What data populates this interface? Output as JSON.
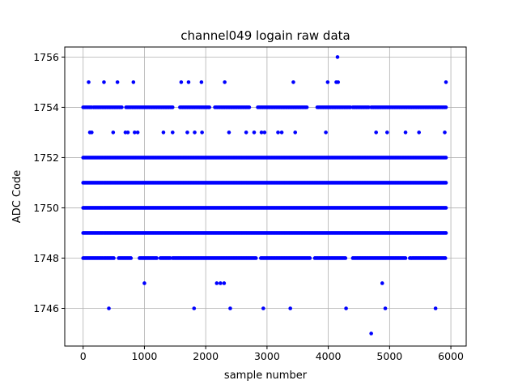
{
  "chart_data": {
    "type": "scatter",
    "title": "channel049 logain raw data",
    "xlabel": "sample number",
    "ylabel": "ADC Code",
    "xlim": [
      -300,
      6250
    ],
    "ylim": [
      1744.5,
      1756.4
    ],
    "xticks": [
      0,
      1000,
      2000,
      3000,
      4000,
      5000,
      6000
    ],
    "yticks": [
      1746,
      1748,
      1750,
      1752,
      1754,
      1756
    ],
    "grid": true,
    "marker_color": "#0000ff",
    "band_range": [
      0,
      5920
    ],
    "band_step": 20,
    "dense_levels": [
      1749,
      1750,
      1751,
      1752
    ],
    "medium_levels": [
      {
        "value": 1754,
        "segments": [
          [
            0,
            150
          ],
          [
            170,
            640
          ],
          [
            700,
            1460
          ],
          [
            1580,
            2070
          ],
          [
            2150,
            2720
          ],
          [
            2850,
            3650
          ],
          [
            3820,
            4360
          ],
          [
            4400,
            4660
          ],
          [
            4700,
            5920
          ]
        ]
      },
      {
        "value": 1748,
        "segments": [
          [
            0,
            500
          ],
          [
            580,
            780
          ],
          [
            920,
            1200
          ],
          [
            1260,
            1420
          ],
          [
            1460,
            2830
          ],
          [
            2900,
            3700
          ],
          [
            3780,
            4280
          ],
          [
            4400,
            5270
          ],
          [
            5330,
            5920
          ]
        ]
      }
    ],
    "sparse_points": [
      {
        "x": 90,
        "y": 1755
      },
      {
        "x": 340,
        "y": 1755
      },
      {
        "x": 560,
        "y": 1755
      },
      {
        "x": 820,
        "y": 1755
      },
      {
        "x": 1600,
        "y": 1755
      },
      {
        "x": 1720,
        "y": 1755
      },
      {
        "x": 1930,
        "y": 1755
      },
      {
        "x": 2310,
        "y": 1755
      },
      {
        "x": 3430,
        "y": 1755
      },
      {
        "x": 3990,
        "y": 1755
      },
      {
        "x": 4130,
        "y": 1755
      },
      {
        "x": 4160,
        "y": 1755
      },
      {
        "x": 5920,
        "y": 1755
      },
      {
        "x": 4150,
        "y": 1756
      },
      {
        "x": 110,
        "y": 1753
      },
      {
        "x": 140,
        "y": 1753
      },
      {
        "x": 490,
        "y": 1753
      },
      {
        "x": 690,
        "y": 1753
      },
      {
        "x": 730,
        "y": 1753
      },
      {
        "x": 840,
        "y": 1753
      },
      {
        "x": 890,
        "y": 1753
      },
      {
        "x": 1310,
        "y": 1753
      },
      {
        "x": 1460,
        "y": 1753
      },
      {
        "x": 1700,
        "y": 1753
      },
      {
        "x": 1820,
        "y": 1753
      },
      {
        "x": 1940,
        "y": 1753
      },
      {
        "x": 2380,
        "y": 1753
      },
      {
        "x": 2660,
        "y": 1753
      },
      {
        "x": 2790,
        "y": 1753
      },
      {
        "x": 2910,
        "y": 1753
      },
      {
        "x": 2960,
        "y": 1753
      },
      {
        "x": 3180,
        "y": 1753
      },
      {
        "x": 3240,
        "y": 1753
      },
      {
        "x": 3460,
        "y": 1753
      },
      {
        "x": 3960,
        "y": 1753
      },
      {
        "x": 4780,
        "y": 1753
      },
      {
        "x": 4960,
        "y": 1753
      },
      {
        "x": 5260,
        "y": 1753
      },
      {
        "x": 5480,
        "y": 1753
      },
      {
        "x": 5900,
        "y": 1753
      },
      {
        "x": 1000,
        "y": 1747
      },
      {
        "x": 2180,
        "y": 1747
      },
      {
        "x": 2240,
        "y": 1747
      },
      {
        "x": 2300,
        "y": 1747
      },
      {
        "x": 4880,
        "y": 1747
      },
      {
        "x": 420,
        "y": 1746
      },
      {
        "x": 1810,
        "y": 1746
      },
      {
        "x": 2400,
        "y": 1746
      },
      {
        "x": 2940,
        "y": 1746
      },
      {
        "x": 3380,
        "y": 1746
      },
      {
        "x": 4290,
        "y": 1746
      },
      {
        "x": 4930,
        "y": 1746
      },
      {
        "x": 5750,
        "y": 1746
      },
      {
        "x": 4700,
        "y": 1745
      }
    ]
  }
}
